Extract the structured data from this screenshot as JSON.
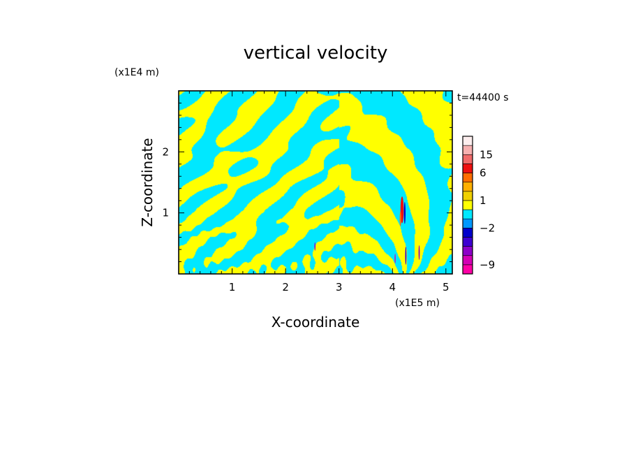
{
  "chart_data": {
    "type": "heatmap",
    "title": "vertical velocity",
    "xlabel": "X-coordinate",
    "ylabel": "Z-coordinate",
    "x_scale_label": "(x1E5 m)",
    "y_scale_label": "(x1E4 m)",
    "time_label": "t=44400 s",
    "xlim": [
      0,
      5.12
    ],
    "ylim": [
      0,
      3.0
    ],
    "x_ticks": [
      1,
      2,
      3,
      4,
      5
    ],
    "x_tick_labels": [
      "1",
      "2",
      "3",
      "4",
      "5"
    ],
    "y_ticks": [
      1,
      2
    ],
    "y_tick_labels": [
      "1",
      "2"
    ],
    "colorbar": {
      "levels_bottom_to_top": [
        {
          "from": -12,
          "to": -9,
          "color": "#ff00a6"
        },
        {
          "from": -9,
          "to": -6,
          "color": "#d400b4"
        },
        {
          "from": -6,
          "to": -4,
          "color": "#8c00c8"
        },
        {
          "from": -4,
          "to": -3,
          "color": "#3d00d2"
        },
        {
          "from": -3,
          "to": -2,
          "color": "#0000cc"
        },
        {
          "from": -2,
          "to": -1,
          "color": "#0098ff"
        },
        {
          "from": -1,
          "to": 0,
          "color": "#00e8ff"
        },
        {
          "from": 0,
          "to": 1,
          "color": "#ffff00"
        },
        {
          "from": 1,
          "to": 2,
          "color": "#f0d000"
        },
        {
          "from": 2,
          "to": 3,
          "color": "#ffb000"
        },
        {
          "from": 3,
          "to": 6,
          "color": "#ff6e00"
        },
        {
          "from": 6,
          "to": 10,
          "color": "#ee1010"
        },
        {
          "from": 10,
          "to": 15,
          "color": "#f06a6a"
        },
        {
          "from": 15,
          "to": 20,
          "color": "#f6b0b0"
        },
        {
          "from": 20,
          "to": 30,
          "color": "#fdeeee"
        }
      ],
      "tick_values": [
        15,
        6,
        1,
        -2,
        -9
      ],
      "tick_labels": [
        "15",
        "6",
        "1",
        "−2",
        "−9"
      ]
    },
    "field": {
      "dominant_positive_color": "#ffff00",
      "dominant_negative_color": "#00e8ff",
      "description_features": "alternating yellow (0..1) and cyan (-1..0) banded patterns; curved wave bands fanning out above x≈4.2; strong updraft core near x≈4.2, z≈0.9–1.3 with red/blue cells; small purple cells near x≈2.5 and x≈4.5 at low z"
    }
  }
}
